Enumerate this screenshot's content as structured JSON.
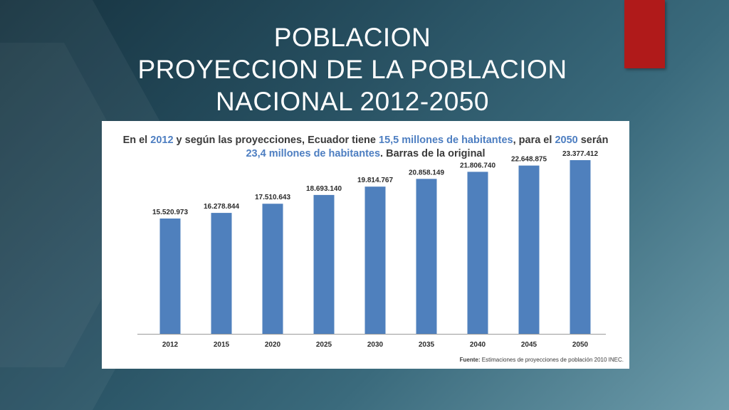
{
  "slide": {
    "title_lines": [
      "POBLACION",
      "PROYECCION DE LA POBLACION",
      "NACIONAL 2012-2050"
    ],
    "accent_color": "#b01a1a",
    "background_color": "#264e5f"
  },
  "chart_panel": {
    "subtitle": {
      "t1": "En el ",
      "h1": "2012",
      "t2": " y según las proyecciones, Ecuador tiene ",
      "h2": "15,5 millones de habitantes",
      "t3": ", para el ",
      "h3": "2050",
      "t4": " serán",
      "h4": "23,4 millones de habitantes",
      "t5": ". Barras de la original"
    },
    "source": {
      "label": "Fuente:",
      "text": " Estimaciones de proyecciones de población 2010 INEC."
    }
  },
  "chart_data": {
    "type": "bar",
    "categories": [
      "2012",
      "2015",
      "2020",
      "2025",
      "2030",
      "2035",
      "2040",
      "2045",
      "2050"
    ],
    "values": [
      15520973,
      16278844,
      17510643,
      18693140,
      19814767,
      20858149,
      21806740,
      22648875,
      23377412
    ],
    "value_labels": [
      "15.520.973",
      "16.278.844",
      "17.510.643",
      "18.693.140",
      "19.814.767",
      "20.858.149",
      "21.806.740",
      "22.648.875",
      "23.377.412"
    ],
    "bar_color": "#4f80bd",
    "ylim": [
      0,
      24000000
    ],
    "grid": false,
    "legend": "none"
  }
}
